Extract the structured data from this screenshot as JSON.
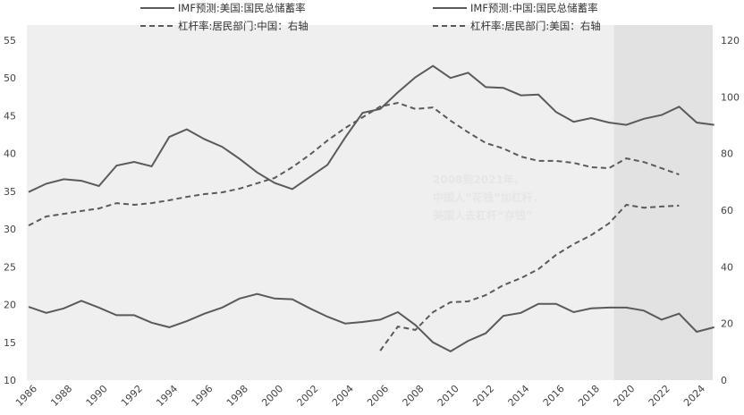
{
  "chart_data": {
    "type": "line",
    "title": "",
    "xlabel": "",
    "ylabel_left": "",
    "ylabel_right": "",
    "ylim_left": [
      10,
      55
    ],
    "yticks_left": [
      10,
      15,
      20,
      25,
      30,
      35,
      40,
      45,
      50,
      55
    ],
    "ylim_right": [
      0,
      120
    ],
    "yticks_right": [
      0,
      20,
      40,
      60,
      80,
      100,
      120
    ],
    "xlim": [
      1986,
      2025
    ],
    "xticks": [
      1986,
      1988,
      1990,
      1992,
      1994,
      1996,
      1998,
      2000,
      2002,
      2004,
      2006,
      2008,
      2010,
      2012,
      2014,
      2016,
      2018,
      2020,
      2022,
      2024
    ],
    "grid": false,
    "legend_position": "top",
    "forecast_shading_start": 2019.3,
    "colors": {
      "line": "#5a5a5a",
      "plot_bg": "#efefef",
      "forecast_bg": "#e2e2e2"
    },
    "annotation": [
      "2008到2021年，",
      "中国人“花钱”加杠杆，",
      "美国人去杠杆“存钱”"
    ],
    "series": [
      {
        "name": "IMF预测:美国:国民总储蓄率",
        "axis": "left",
        "style": "solid",
        "x": [
          1986,
          1987,
          1988,
          1989,
          1990,
          1991,
          1992,
          1993,
          1994,
          1995,
          1996,
          1997,
          1998,
          1999,
          2000,
          2001,
          2002,
          2003,
          2004,
          2005,
          2006,
          2007,
          2008,
          2009,
          2010,
          2011,
          2012,
          2013,
          2014,
          2015,
          2016,
          2017,
          2018,
          2019,
          2020,
          2021,
          2022,
          2023,
          2024,
          2025
        ],
        "values": [
          19.7,
          18.9,
          19.5,
          20.5,
          19.6,
          18.6,
          18.6,
          17.6,
          17.0,
          17.8,
          18.8,
          19.6,
          20.8,
          21.4,
          20.8,
          20.7,
          19.5,
          18.4,
          17.5,
          17.7,
          18.0,
          19.0,
          17.3,
          15.0,
          13.8,
          15.2,
          16.2,
          18.5,
          18.9,
          20.1,
          20.1,
          19.0,
          19.5,
          19.6,
          19.6,
          19.2,
          18.0,
          18.8,
          16.4,
          17.0
        ]
      },
      {
        "name": "IMF预测:中国:国民总储蓄率",
        "axis": "left",
        "style": "solid",
        "x": [
          1986,
          1987,
          1988,
          1989,
          1990,
          1991,
          1992,
          1993,
          1994,
          1995,
          1996,
          1997,
          1998,
          1999,
          2000,
          2001,
          2002,
          2003,
          2004,
          2005,
          2006,
          2007,
          2008,
          2009,
          2010,
          2011,
          2012,
          2013,
          2014,
          2015,
          2016,
          2017,
          2018,
          2019,
          2020,
          2021,
          2022,
          2023,
          2024,
          2025
        ],
        "values": [
          34.9,
          36.0,
          36.6,
          36.4,
          35.7,
          38.4,
          38.9,
          38.3,
          42.2,
          43.2,
          41.9,
          40.9,
          39.3,
          37.5,
          36.1,
          35.3,
          36.9,
          38.5,
          42.1,
          45.4,
          45.9,
          48.1,
          50.1,
          51.6,
          50.0,
          50.7,
          48.8,
          48.7,
          47.7,
          47.8,
          45.5,
          44.2,
          44.7,
          44.1,
          43.8,
          44.6,
          45.1,
          46.2,
          44.1,
          43.8
        ]
      },
      {
        "name": "杠杆率:居民部门:中国：右轴",
        "axis": "right",
        "style": "dashed",
        "x": [
          2006,
          2007,
          2008,
          2009,
          2010,
          2011,
          2012,
          2013,
          2014,
          2015,
          2016,
          2017,
          2018,
          2019,
          2020,
          2021,
          2022,
          2023
        ],
        "values": [
          10.4,
          18.9,
          17.7,
          24.0,
          27.5,
          27.8,
          30.0,
          33.5,
          36.0,
          39.2,
          44.2,
          48.0,
          51.2,
          55.3,
          61.9,
          60.9,
          61.3,
          61.6
        ]
      },
      {
        "name": "杠杆率:居民部门:美国：右轴",
        "axis": "right",
        "style": "dashed",
        "x": [
          1986,
          1987,
          1988,
          1989,
          1990,
          1991,
          1992,
          1993,
          1994,
          1995,
          1996,
          1997,
          1998,
          1999,
          2000,
          2001,
          2002,
          2003,
          2004,
          2005,
          2006,
          2007,
          2008,
          2009,
          2010,
          2011,
          2012,
          2013,
          2014,
          2015,
          2016,
          2017,
          2018,
          2019,
          2020,
          2021,
          2022,
          2023
        ],
        "values": [
          54.6,
          57.8,
          58.7,
          59.7,
          60.6,
          62.5,
          61.9,
          62.5,
          63.5,
          64.7,
          65.7,
          66.3,
          67.6,
          69.5,
          71.4,
          75.2,
          79.6,
          84.6,
          89.0,
          92.8,
          96.6,
          97.9,
          95.7,
          96.3,
          91.6,
          87.5,
          83.7,
          81.8,
          78.9,
          77.4,
          77.4,
          76.7,
          75.2,
          74.8,
          78.3,
          77.0,
          74.8,
          72.6
        ]
      }
    ]
  }
}
